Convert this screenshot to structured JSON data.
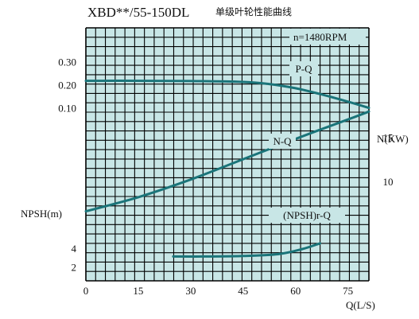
{
  "title_model": "XBD**/55-150DL",
  "title_desc": "单级叶轮性能曲线",
  "speed_label": "n=1480RPM",
  "colors": {
    "grid_bg": "#c8e6e6",
    "grid_line": "#000000",
    "curve": "#1a7479",
    "text": "#111111"
  },
  "chart_data": {
    "type": "line",
    "x_axis": {
      "label": "Q(L/S)",
      "ticks": [
        0,
        15,
        30,
        45,
        60,
        75
      ],
      "range": [
        0,
        81
      ]
    },
    "y_axes": [
      {
        "id": "pq",
        "ticks": [
          0.1,
          0.2,
          0.3
        ],
        "tick_labels": [
          "0.10",
          "0.20",
          "0.30"
        ]
      },
      {
        "id": "power",
        "label": "N(KW)",
        "ticks": [
          10,
          15
        ],
        "tick_labels": [
          "10",
          "15"
        ]
      },
      {
        "id": "npsh",
        "label": "NPSH(m)",
        "ticks": [
          2,
          4
        ],
        "tick_labels": [
          "2",
          "4"
        ]
      }
    ],
    "series": [
      {
        "name": "P-Q",
        "axis": "pq",
        "points": [
          [
            0,
            0.22
          ],
          [
            15,
            0.22
          ],
          [
            30,
            0.219
          ],
          [
            45,
            0.215
          ],
          [
            52,
            0.207
          ],
          [
            60,
            0.188
          ],
          [
            67,
            0.163
          ],
          [
            75,
            0.13
          ],
          [
            81,
            0.103
          ]
        ]
      },
      {
        "name": "N-Q",
        "axis": "power",
        "points": [
          [
            0,
            6.7
          ],
          [
            15,
            8.3
          ],
          [
            30,
            10.3
          ],
          [
            45,
            12.6
          ],
          [
            60,
            14.9
          ],
          [
            75,
            17.1
          ],
          [
            81,
            18.0
          ]
        ]
      },
      {
        "name": "(NPSH)r-Q",
        "axis": "npsh",
        "points": [
          [
            25,
            3.2
          ],
          [
            35,
            3.2
          ],
          [
            45,
            3.25
          ],
          [
            55,
            3.45
          ],
          [
            62,
            4.0
          ],
          [
            67,
            4.6
          ]
        ]
      }
    ]
  }
}
